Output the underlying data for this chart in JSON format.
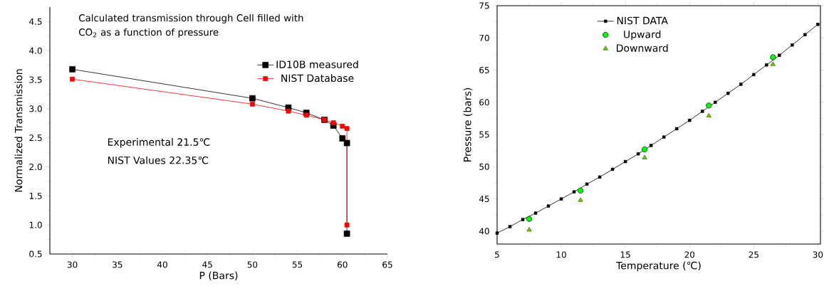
{
  "chart_data": [
    {
      "type": "line",
      "title": "Calculated transmission through Cell filled with CO$_{2}$ as a function of pressure",
      "xlabel": "P (Bars)",
      "ylabel": "Normalized Transmission",
      "annotations": [
        "Experimental 21.5℃",
        "NIST Values 22.35℃"
      ],
      "xlim": [
        27.5,
        65
      ],
      "ylim": [
        0.5,
        4.75
      ],
      "xticks": [
        30,
        35,
        40,
        45,
        50,
        55,
        60,
        65
      ],
      "yticks": [
        0.5,
        {
          "value": 1,
          "label": "1.0"
        },
        1.5,
        {
          "value": 2,
          "label": "2.0"
        },
        2.5,
        {
          "value": 3,
          "label": "3.0"
        },
        3.5,
        {
          "value": 4,
          "label": "4.0"
        },
        4.5
      ],
      "legend": "top right",
      "marker": "square",
      "grid": false,
      "series": [
        {
          "name": "ID10B measured",
          "color": "#000000",
          "x": [
            30,
            50,
            54,
            56,
            58,
            59,
            60,
            60.5,
            60.5
          ],
          "values": [
            3.68,
            3.18,
            3.02,
            2.93,
            2.81,
            2.71,
            2.49,
            2.41,
            0.85
          ]
        },
        {
          "name": "NIST Database",
          "color": "#ff0000",
          "x": [
            30,
            50,
            54,
            56,
            58,
            59,
            60,
            60.5,
            60.5
          ],
          "values": [
            3.51,
            3.08,
            2.96,
            2.89,
            2.81,
            2.76,
            2.7,
            2.66,
            1.0
          ]
        }
      ]
    },
    {
      "type": "line",
      "xlabel": "Temperature (℃)",
      "ylabel": "Pressure (bars)",
      "xlim": [
        5,
        30.2
      ],
      "ylim": [
        38,
        75
      ],
      "xticks": [
        5,
        10,
        15,
        20,
        25,
        30
      ],
      "yticks": [
        40,
        45,
        50,
        55,
        60,
        65,
        70,
        75
      ],
      "legend": "top left",
      "grid": false,
      "series": [
        {
          "name": "NIST DATA",
          "type": "line",
          "marker": "square",
          "color": "#000000",
          "x": [
            5,
            6,
            7,
            8,
            9,
            10,
            11,
            12,
            13,
            14,
            15,
            16,
            17,
            18,
            19,
            20,
            21,
            22,
            23,
            24,
            25,
            26,
            27,
            28,
            29,
            30
          ],
          "values": [
            39.7,
            40.7,
            41.8,
            42.8,
            43.9,
            45.0,
            46.1,
            47.3,
            48.4,
            49.6,
            50.8,
            52.0,
            53.3,
            54.6,
            55.9,
            57.2,
            58.6,
            60.0,
            61.4,
            62.8,
            64.3,
            65.8,
            67.3,
            68.9,
            70.5,
            72.1
          ]
        },
        {
          "name": "Upward",
          "type": "scatter",
          "marker": "circle",
          "color": "#00ff00",
          "x": [
            7.5,
            11.5,
            16.5,
            21.5,
            26.5
          ],
          "values": [
            41.9,
            46.3,
            52.7,
            59.5,
            67.0
          ]
        },
        {
          "name": "Downward",
          "type": "scatter",
          "marker": "triangle",
          "color": "#00ff00",
          "x": [
            7.5,
            11.5,
            16.5,
            21.5,
            26.5
          ],
          "values": [
            40.2,
            44.8,
            51.4,
            57.9,
            65.9
          ]
        }
      ]
    }
  ]
}
